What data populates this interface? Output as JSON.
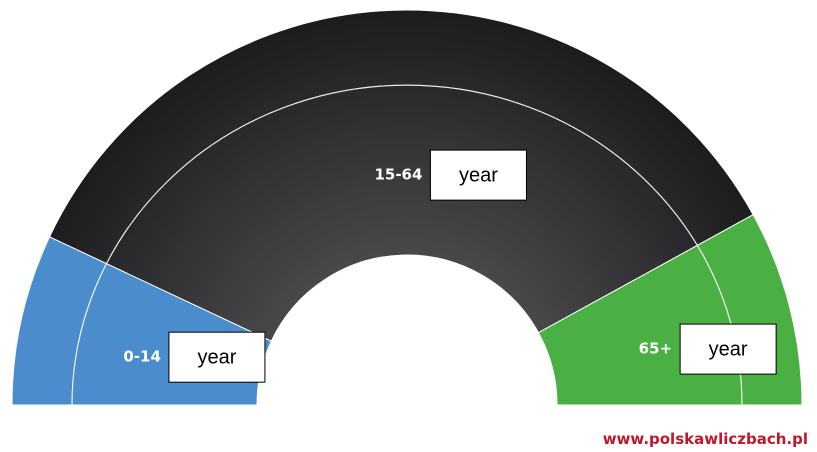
{
  "chart_data": {
    "type": "pie",
    "categories": [
      "0-14",
      "15-64",
      "65+"
    ],
    "values": [
      14,
      70,
      16
    ],
    "colors": [
      "#4a8ccc",
      "#232325",
      "#4bb043"
    ],
    "annotations": [
      "year",
      "year",
      "year"
    ],
    "source": "www.polskawliczbach.pl"
  }
}
